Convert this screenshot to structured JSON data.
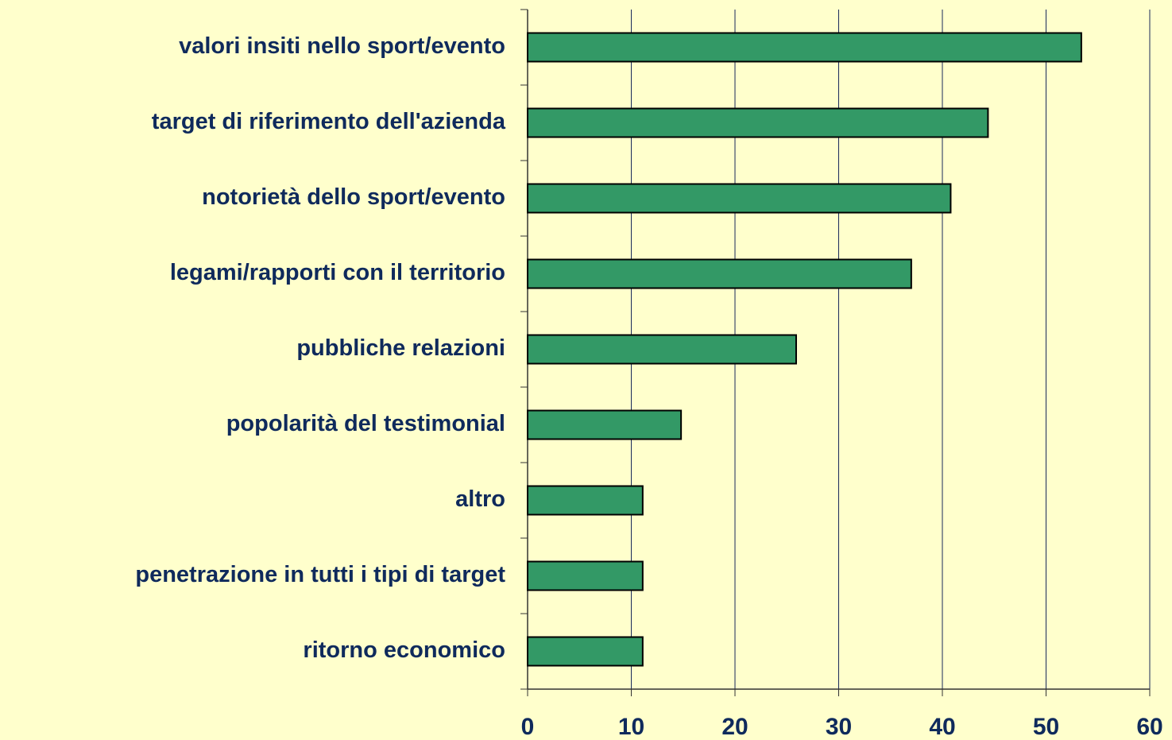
{
  "chart_data": {
    "type": "barh",
    "categories": [
      "valori insiti nello sport/evento",
      "target di riferimento dell'azienda",
      "notorietà dello sport/evento",
      "legami/rapporti con il territorio",
      "pubbliche relazioni",
      "popolarità del testimonial",
      "altro",
      "penetrazione in tutti i tipi di target",
      "ritorno economico"
    ],
    "values": [
      53.4,
      44.4,
      40.8,
      37.0,
      25.9,
      14.8,
      11.1,
      11.1,
      11.1
    ],
    "color": "#339966",
    "xlim": [
      0,
      60
    ],
    "xticks": [
      0,
      10,
      20,
      30,
      40,
      50,
      60
    ],
    "grid": true
  }
}
